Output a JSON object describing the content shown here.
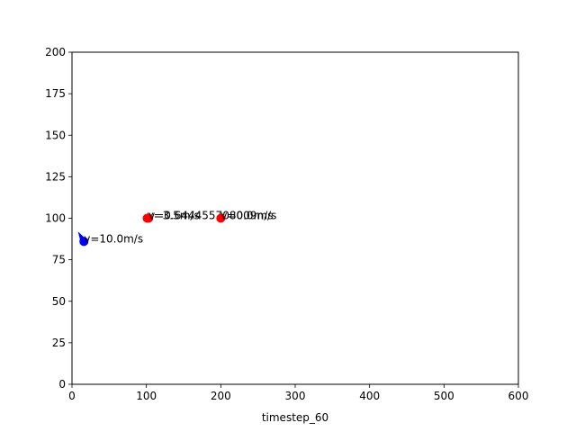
{
  "chart_data": {
    "type": "scatter",
    "title": "",
    "xlabel": "timestep_60",
    "ylabel": "",
    "xlim": [
      0,
      600
    ],
    "ylim": [
      0,
      200
    ],
    "xticks": [
      "0",
      "100",
      "200",
      "300",
      "400",
      "500",
      "600"
    ],
    "yticks": [
      "0",
      "25",
      "50",
      "75",
      "100",
      "125",
      "150",
      "175",
      "200"
    ],
    "grid": false,
    "points": [
      {
        "x": 16,
        "y": 86,
        "color": "#0000ff",
        "label": "v=10.0m/s",
        "heading_from": [
          8,
          92
        ]
      },
      {
        "x": 101,
        "y": 100,
        "color": "#ff0000",
        "label": "v=3.5m/s"
      },
      {
        "x": 103,
        "y": 100,
        "color": "#ff0000",
        "label": "v=0.644455708009m/s"
      },
      {
        "x": 200,
        "y": 100,
        "color": "#ff0000",
        "label": "v=0.0m/s"
      }
    ]
  }
}
